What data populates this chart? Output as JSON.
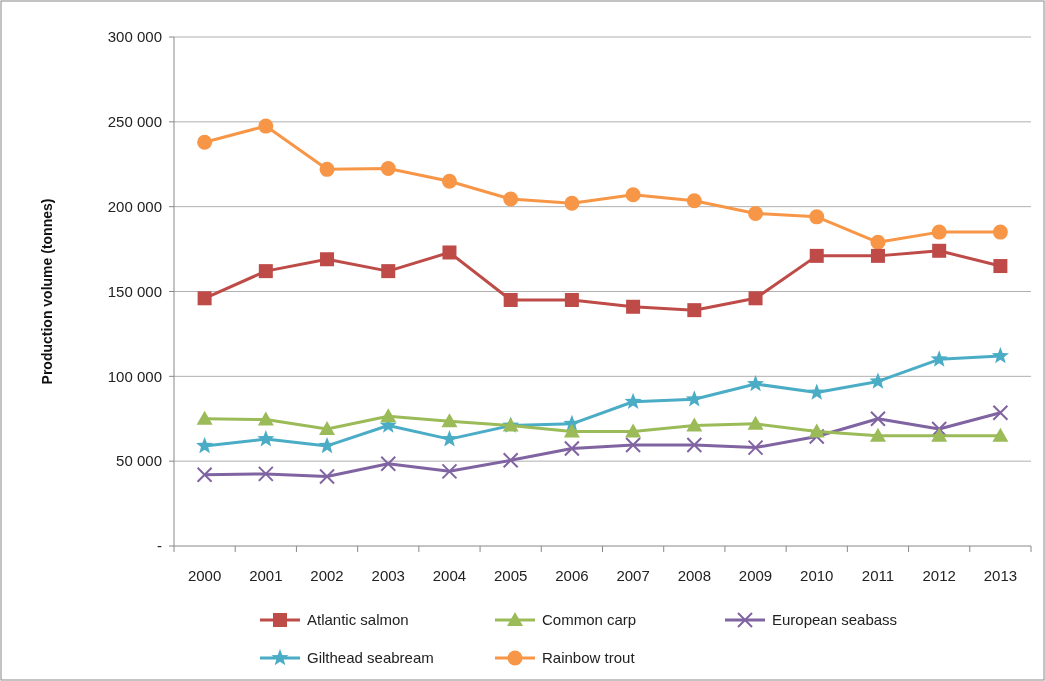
{
  "chart_data": {
    "type": "line",
    "ylabel": "Production volume (tonnes)",
    "categories": [
      "2000",
      "2001",
      "2002",
      "2003",
      "2004",
      "2005",
      "2006",
      "2007",
      "2008",
      "2009",
      "2010",
      "2011",
      "2012",
      "2013"
    ],
    "series": [
      {
        "name": "Atlantic salmon",
        "color": "#be4b48",
        "marker": "square",
        "values": [
          146000,
          162000,
          169000,
          162000,
          173000,
          145000,
          145000,
          141000,
          139000,
          146000,
          171000,
          171000,
          174000,
          165000
        ]
      },
      {
        "name": "Common carp",
        "color": "#9bbb59",
        "marker": "triangle",
        "values": [
          75000,
          74500,
          69000,
          76500,
          73500,
          71000,
          67500,
          67500,
          71000,
          72000,
          67500,
          65000,
          65000,
          65000
        ]
      },
      {
        "name": "European seabass",
        "color": "#8064a2",
        "marker": "cross",
        "values": [
          42000,
          42500,
          41000,
          48500,
          44000,
          50500,
          57500,
          59500,
          59500,
          58000,
          64500,
          75000,
          69000,
          78500
        ]
      },
      {
        "name": "Gilthead seabream",
        "color": "#4bacc6",
        "marker": "star",
        "values": [
          59000,
          63000,
          59000,
          71000,
          63000,
          71000,
          72000,
          85000,
          86500,
          95500,
          90500,
          97000,
          110000,
          112000
        ]
      },
      {
        "name": "Rainbow trout",
        "color": "#f79646",
        "marker": "circle",
        "values": [
          238000,
          247500,
          222000,
          222500,
          215000,
          204500,
          202000,
          207000,
          203500,
          196000,
          194000,
          179000,
          185000,
          185000
        ]
      }
    ],
    "ylim": [
      0,
      300000
    ],
    "yticks": [
      {
        "value": 0,
        "label": "-"
      },
      {
        "value": 50000,
        "label": "50 000"
      },
      {
        "value": 100000,
        "label": "100 000"
      },
      {
        "value": 150000,
        "label": "150 000"
      },
      {
        "value": 200000,
        "label": "200 000"
      },
      {
        "value": 250000,
        "label": "250 000"
      },
      {
        "value": 300000,
        "label": "300 000"
      }
    ],
    "grid": "y",
    "legend": "bottom"
  }
}
